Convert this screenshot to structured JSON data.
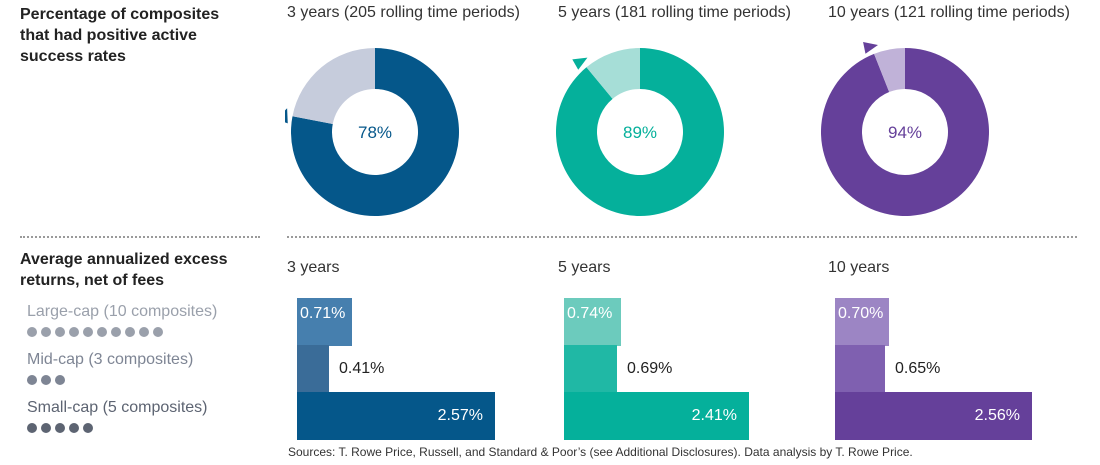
{
  "section1_heading": [
    "Percentage of composites",
    "that had positive active",
    "success rates"
  ],
  "section2_heading": [
    "Average annualized excess",
    "returns, net of fees"
  ],
  "legend": [
    {
      "label": "Large-cap (10 composites)",
      "dots": 10,
      "text_color": "#9aa0ab",
      "dot_color": "#9aa0ab"
    },
    {
      "label": "Mid-cap (3 composites)",
      "dots": 3,
      "text_color": "#7e8594",
      "dot_color": "#7e8594"
    },
    {
      "label": "Small-cap (5 composites)",
      "dots": 5,
      "text_color": "#5d6472",
      "dot_color": "#5d6472"
    }
  ],
  "source_note": "Sources: T. Rowe Price, Russell, and Standard & Poor’s (see Additional Disclosures). Data analysis by T. Rowe Price.",
  "chart_data": [
    {
      "type": "pie",
      "title": "3 years (205 rolling time periods)",
      "value": 78,
      "center_label": "78%",
      "colors": {
        "positive": "#05578a",
        "remainder": "#c6ccdc",
        "label": "#05578a"
      }
    },
    {
      "type": "pie",
      "title": "5 years (181 rolling time periods)",
      "value": 89,
      "center_label": "89%",
      "colors": {
        "positive": "#05b09b",
        "remainder": "#a6ded7",
        "label": "#05b09b"
      }
    },
    {
      "type": "pie",
      "title": "10 years (121 rolling time periods)",
      "value": 94,
      "center_label": "94%",
      "colors": {
        "positive": "#65409a",
        "remainder": "#c0b2d8",
        "label": "#65409a"
      }
    },
    {
      "type": "bar",
      "title": "3 years",
      "categories": [
        "Large-cap (10 composites)",
        "Mid-cap (3 composites)",
        "Small-cap (5 composites)"
      ],
      "values": [
        0.71,
        0.41,
        2.57
      ],
      "labels": [
        "0.71%",
        "0.41%",
        "2.57%"
      ],
      "colors": [
        "#467fae",
        "#3a6c98",
        "#05578a"
      ]
    },
    {
      "type": "bar",
      "title": "5 years",
      "categories": [
        "Large-cap (10 composites)",
        "Mid-cap (3 composites)",
        "Small-cap (5 composites)"
      ],
      "values": [
        0.74,
        0.69,
        2.41
      ],
      "labels": [
        "0.74%",
        "0.69%",
        "2.41%"
      ],
      "colors": [
        "#6ccbbd",
        "#20b8a5",
        "#05b09b"
      ]
    },
    {
      "type": "bar",
      "title": "10 years",
      "categories": [
        "Large-cap (10 composites)",
        "Mid-cap (3 composites)",
        "Small-cap (5 composites)"
      ],
      "values": [
        0.7,
        0.65,
        2.56
      ],
      "labels": [
        "0.70%",
        "0.65%",
        "2.56%"
      ],
      "colors": [
        "#9c85c4",
        "#7f60b0",
        "#65409a"
      ]
    }
  ]
}
